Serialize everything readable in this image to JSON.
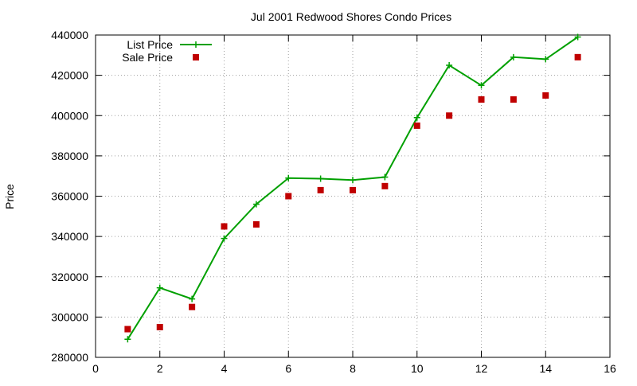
{
  "chart_data": {
    "type": "line",
    "title": "Jul 2001 Redwood Shores Condo Prices",
    "xlabel": "",
    "ylabel": "Price",
    "xlim": [
      0,
      16
    ],
    "ylim": [
      280000,
      440000
    ],
    "xticks": [
      0,
      2,
      4,
      6,
      8,
      10,
      12,
      14,
      16
    ],
    "yticks": [
      280000,
      300000,
      320000,
      340000,
      360000,
      380000,
      400000,
      420000,
      440000
    ],
    "grid": true,
    "legend_position": "top-left",
    "series": [
      {
        "name": "List Price",
        "style": "line-plus",
        "color": "#00a000",
        "x": [
          1,
          2,
          3,
          4,
          5,
          6,
          7,
          8,
          9,
          10,
          11,
          12,
          13,
          14,
          15
        ],
        "values": [
          289000,
          314500,
          309000,
          339000,
          356000,
          369000,
          368700,
          368000,
          369500,
          399000,
          425000,
          415000,
          429000,
          428000,
          439000
        ]
      },
      {
        "name": "Sale Price",
        "style": "square-points",
        "color": "#c00000",
        "x": [
          1,
          2,
          3,
          4,
          5,
          6,
          7,
          8,
          9,
          10,
          11,
          12,
          13,
          14,
          15
        ],
        "values": [
          294000,
          295000,
          305000,
          345000,
          346000,
          360000,
          363000,
          363000,
          365000,
          395000,
          400000,
          408000,
          408000,
          410000,
          429000
        ]
      }
    ]
  }
}
